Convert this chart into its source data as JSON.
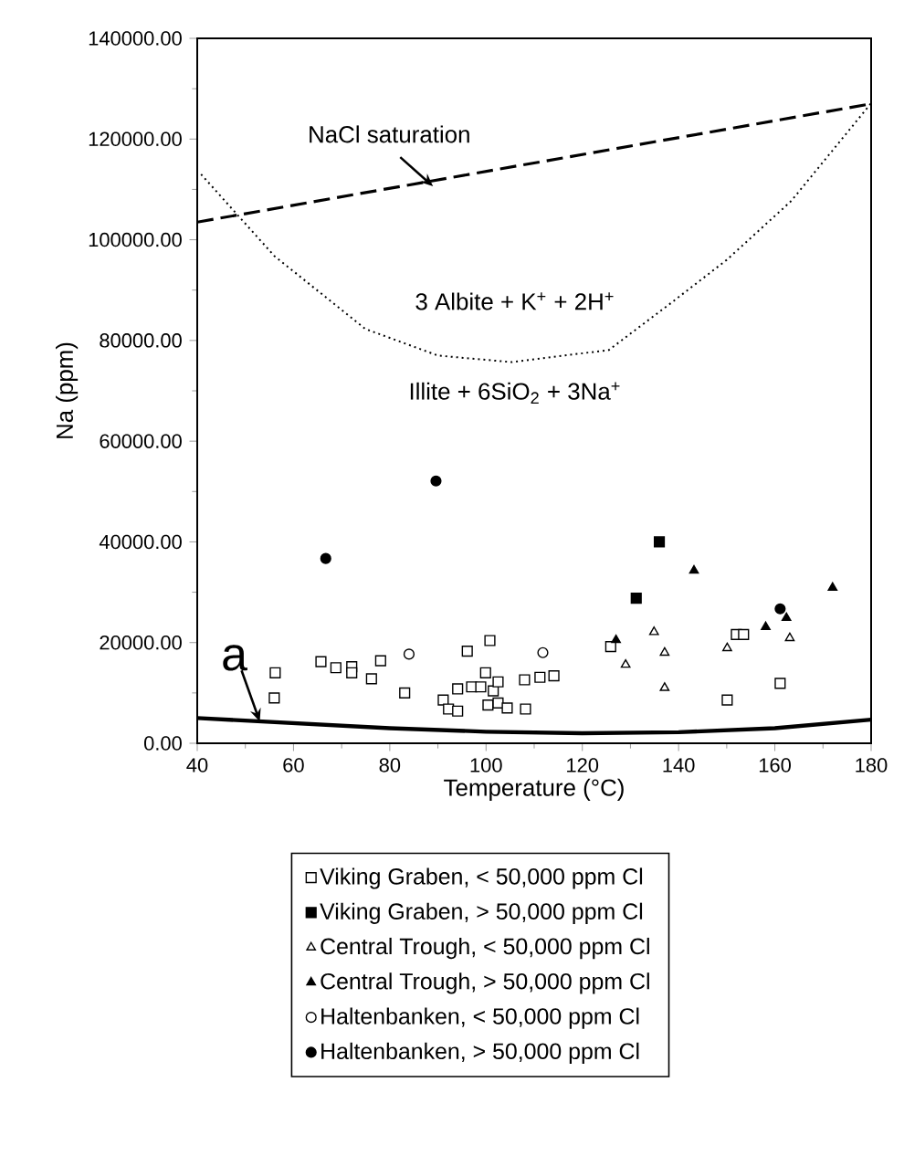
{
  "chart_data": {
    "type": "scatter",
    "xlabel": "Temperature (°C)",
    "ylabel": "Na (ppm)",
    "xlim": [
      40,
      180
    ],
    "ylim": [
      0,
      140000
    ],
    "xticks": [
      40,
      60,
      80,
      100,
      120,
      140,
      160,
      180
    ],
    "yticks": [
      {
        "value": 0,
        "label": "0.00"
      },
      {
        "value": 20000,
        "label": "20000.00"
      },
      {
        "value": 40000,
        "label": "40000.00"
      },
      {
        "value": 60000,
        "label": "60000.00"
      },
      {
        "value": 80000,
        "label": "80000.00"
      },
      {
        "value": 100000,
        "label": "100000.00"
      },
      {
        "value": 120000,
        "label": "120000.00"
      },
      {
        "value": 140000,
        "label": "140000.00"
      }
    ],
    "grid": false,
    "legend": "bottom",
    "annotations": [
      {
        "text": "NaCl saturation",
        "x": 89,
        "y": 110600
      },
      "3 Albite + K$^{+}$ + 2H$^{+}$",
      "Illite + 6SiO$_{2}$ + 3Na$^{+}$",
      {
        "text": "a",
        "x": 53,
        "y": 4300
      }
    ],
    "series": [
      {
        "name": "Viking Graben, < 50,000 ppm Cl",
        "color": "#ffffff",
        "marker": "square",
        "x": [
          56.2,
          56,
          65.7,
          68.8,
          72.1,
          72.1,
          76.2,
          78.1,
          83.1,
          91.1,
          92.2,
          94.1,
          94.1,
          96.1,
          97,
          98.9,
          99.9,
          100.8,
          100.4,
          101.5,
          102.5,
          102.5,
          104.4,
          108,
          108.2,
          111.2,
          114.1,
          125.9,
          152,
          153.5,
          150.1,
          161.1
        ],
        "values": [
          14000,
          9000,
          16200,
          15000,
          15200,
          14000,
          12800,
          16400,
          10000,
          8600,
          6800,
          6400,
          10800,
          18300,
          11200,
          11200,
          14000,
          20400,
          7600,
          10400,
          12200,
          8000,
          7000,
          12600,
          6800,
          13100,
          13400,
          19200,
          21600,
          21600,
          8600,
          11900
        ]
      },
      {
        "name": "Viking Graben, > 50,000 ppm Cl",
        "color": "#000000",
        "marker": "square",
        "x": [
          131.2,
          136
        ],
        "values": [
          28800,
          40000
        ]
      },
      {
        "name": "Central Trough, < 50,000 ppm Cl",
        "color": "#ffffff",
        "marker": "triangle",
        "x": [
          134.9,
          129,
          137.1,
          137.1,
          150.1,
          163.1
        ],
        "values": [
          22100,
          15600,
          18000,
          11000,
          18900,
          20900
        ]
      },
      {
        "name": "Central Trough, > 50,000 ppm Cl",
        "color": "#000000",
        "marker": "triangle",
        "x": [
          127,
          143.2,
          158.1,
          162.4,
          172
        ],
        "values": [
          20500,
          34300,
          23100,
          24900,
          30900
        ]
      },
      {
        "name": "Haltenbanken, < 50,000 ppm Cl",
        "color": "#ffffff",
        "marker": "circle",
        "x": [
          84,
          111.8
        ],
        "values": [
          17700,
          18000
        ]
      },
      {
        "name": "Haltenbanken, > 50,000 ppm Cl",
        "color": "#000000",
        "marker": "circle",
        "x": [
          66.7,
          89.6,
          161.1
        ],
        "values": [
          36700,
          52100,
          26700
        ]
      },
      {
        "type": "line",
        "color": "#000000",
        "line_style": "dashed",
        "marker": "none",
        "x": [
          40,
          180
        ],
        "values": [
          103500,
          127000
        ]
      },
      {
        "type": "line",
        "color": "#000000",
        "line_style": "dotted",
        "marker": "none",
        "x": [
          40.8,
          56,
          74.9,
          90,
          105.3,
          125.5,
          138.1,
          150,
          163.4,
          179.9
        ],
        "values": [
          113000,
          96800,
          82300,
          77000,
          75700,
          78100,
          87200,
          96000,
          107700,
          127000
        ]
      },
      {
        "type": "line",
        "color": "#000000",
        "line_style": "solid",
        "marker": "none",
        "x": [
          40,
          60,
          80,
          100,
          120,
          140,
          160,
          180
        ],
        "values": [
          5000,
          4000,
          3000,
          2300,
          2000,
          2200,
          3000,
          4700
        ]
      }
    ]
  }
}
